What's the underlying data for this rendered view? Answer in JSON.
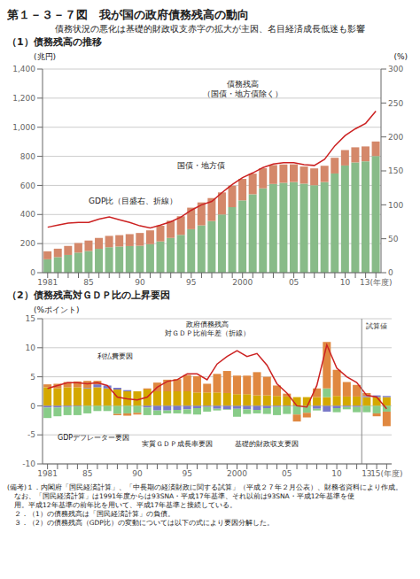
{
  "title": "第１－３－７図　我が国の政府債務残高の動向",
  "subtitle": "債務状況の悪化は基礎的財政収支赤字の拡大が主因、名目経済成長低迷も影響",
  "chart_data": [
    {
      "type": "bar",
      "title": "（1）債務残高の推移",
      "stacked": true,
      "grid": true,
      "ylabel": "(兆円)",
      "y2label": "(%)",
      "categories": [
        "1981",
        null,
        null,
        null,
        "85",
        null,
        null,
        null,
        null,
        "90",
        null,
        null,
        null,
        null,
        "95",
        null,
        null,
        null,
        null,
        "2000",
        null,
        null,
        null,
        null,
        "05",
        null,
        null,
        null,
        null,
        "10",
        null,
        null,
        "13(年度)"
      ],
      "series": [
        {
          "name": "国債・地方債",
          "color": "#88bb88",
          "values": [
            92,
            107,
            122,
            138,
            149,
            164,
            175,
            180,
            183,
            185,
            196,
            215,
            239,
            260,
            299,
            325,
            355,
            400,
            450,
            497,
            539,
            580,
            610,
            618,
            623,
            612,
            601,
            623,
            682,
            737,
            758,
            766,
            802
          ]
        },
        {
          "name": "債務残高\n（国債・地方債除く）",
          "color": "#d4886a",
          "values": [
            55,
            58,
            62,
            66,
            72,
            75,
            78,
            78,
            82,
            88,
            95,
            108,
            118,
            128,
            148,
            158,
            158,
            152,
            148,
            148,
            142,
            138,
            130,
            126,
            122,
            118,
            116,
            112,
            108,
            106,
            104,
            102,
            100
          ]
        },
        {
          "name": "GDP比（目盛右、折線）",
          "type": "line",
          "axis": "y2",
          "color": "#cc2222",
          "values": [
            67,
            70,
            73,
            74,
            74,
            79,
            82,
            78,
            74,
            69,
            66,
            70,
            75,
            82,
            92,
            100,
            105,
            118,
            130,
            140,
            147,
            155,
            160,
            162,
            162,
            159,
            158,
            167,
            187,
            202,
            212,
            220,
            238
          ]
        }
      ],
      "ylim": [
        0,
        1400
      ],
      "yticks": [
        0,
        200,
        400,
        600,
        800,
        {
          "value": 1000,
          "label": "1,000"
        },
        {
          "value": 1200,
          "label": "1,200"
        },
        {
          "value": 1400,
          "label": "1,400"
        }
      ],
      "y2lim": [
        0,
        300
      ],
      "y2ticks": [
        0,
        50,
        100,
        150,
        200,
        250,
        300
      ]
    },
    {
      "type": "bar",
      "title": "（2）債務残高対ＧＤＰ比の上昇要因",
      "stacked": true,
      "grid": true,
      "ylabel": "(%ポイント)",
      "categories": [
        "1981",
        null,
        null,
        null,
        "85",
        null,
        null,
        null,
        null,
        "90",
        null,
        null,
        null,
        null,
        "95",
        null,
        null,
        null,
        null,
        "2000",
        null,
        null,
        null,
        null,
        "05",
        null,
        null,
        null,
        null,
        "10",
        null,
        null,
        "13",
        null,
        "15(年度)"
      ],
      "series": [
        {
          "name": "利払費要因",
          "color": "#d4a800",
          "values": [
            3.2,
            3.0,
            3.2,
            3.2,
            3.0,
            3.2,
            3.0,
            2.8,
            2.5,
            2.5,
            2.8,
            2.5,
            2.5,
            2.5,
            2.5,
            2.3,
            2.3,
            2.3,
            2.2,
            2.0,
            2.0,
            1.8,
            1.8,
            1.7,
            1.6,
            1.5,
            1.5,
            1.5,
            1.5,
            1.7,
            1.6,
            1.6,
            1.5,
            1.5,
            1.5
          ]
        },
        {
          "name": "GDPデフレーター要因",
          "color": "#7878c8",
          "values": [
            -0.3,
            -0.3,
            -0.2,
            -0.1,
            0.1,
            0.5,
            0.5,
            0.3,
            0.2,
            0.0,
            -0.3,
            -0.8,
            -0.8,
            -0.7,
            -0.6,
            -0.4,
            -0.2,
            -0.5,
            -0.6,
            -0.5,
            -0.6,
            -0.7,
            -0.4,
            -0.2,
            -0.1,
            -0.1,
            -0.0,
            -0.5,
            -1.0,
            -0.4,
            -0.2,
            -0.2,
            0.2,
            0.3,
            0.2
          ]
        },
        {
          "name": "実質ＧＤＰ成長率要因",
          "color": "#88cc88",
          "values": [
            -1.8,
            -1.5,
            -1.4,
            -1.5,
            -1.3,
            -0.9,
            -0.9,
            -1.4,
            -1.3,
            -1.2,
            -1.3,
            -0.8,
            -0.5,
            -0.6,
            -0.8,
            -1.1,
            -0.8,
            -0.3,
            -0.1,
            -1.4,
            -0.8,
            -0.6,
            -1.0,
            -1.4,
            -1.3,
            -1.4,
            -1.2,
            -0.3,
            1.5,
            -0.7,
            -0.4,
            -0.9,
            -1.1,
            -1.3,
            -1.0
          ]
        },
        {
          "name": "基礎的財政収支要因",
          "color": "#e08840",
          "values": [
            0.5,
            0.8,
            0.9,
            1.0,
            1.2,
            0.6,
            0.0,
            -0.2,
            -0.4,
            -0.3,
            0.2,
            1.5,
            2.0,
            2.1,
            2.8,
            2.8,
            1.5,
            3.2,
            3.8,
            3.2,
            3.2,
            4.0,
            3.2,
            1.8,
            0.5,
            -1.2,
            -0.8,
            1.5,
            8.0,
            4.5,
            2.5,
            2.0,
            0.5,
            -0.5,
            -2.5
          ]
        },
        {
          "name": "政府債務残高\n対ＧＤＰ比前年差（折線）",
          "type": "line",
          "color": "#cc2222",
          "values": [
            3.0,
            3.5,
            4.0,
            4.0,
            3.8,
            4.0,
            3.5,
            1.5,
            1.2,
            1.0,
            1.5,
            3.2,
            4.2,
            4.5,
            5.5,
            5.5,
            4.5,
            7.2,
            8.5,
            9.5,
            8.5,
            9.0,
            7.0,
            3.8,
            2.2,
            0.0,
            -0.2,
            3.5,
            10.5,
            6.5,
            5.0,
            4.0,
            1.8,
            1.5,
            -0.5
          ]
        }
      ],
      "ylim": [
        -10,
        15
      ],
      "yticks": [
        -10,
        -5,
        0,
        5,
        10,
        15
      ],
      "annotations": [
        "試算値"
      ]
    }
  ],
  "footnotes": [
    "(備考)１．内閣府「国民経済計算」、「中長期の経済財政に関する試算」（平成２７年２月公表）、財務省資料により作成。",
    "　なお、「国民経済計算」は1991年度からは93SNA・平成17年基準、それ以前は93SNA・平成12年基準を使",
    "　用。平成12年基準の前年比を用いて、平成17年基準と接続している。",
    "　２．（1）の債務残高は「国民経済計算」の負債。",
    "　３．（2）の債務残高（GDP比）の変動については以下の式により要因分解した。"
  ]
}
